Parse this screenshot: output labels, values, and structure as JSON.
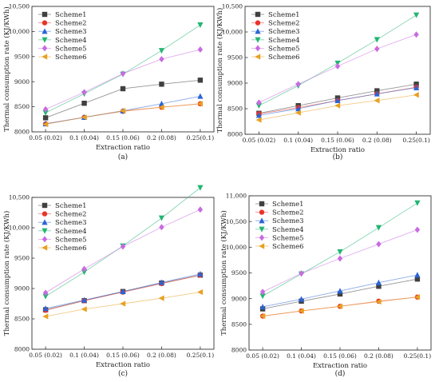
{
  "colors": {
    "Scheme1": "#404040",
    "Scheme2": "#e8352b",
    "Scheme3": "#2a64d6",
    "Scheme4": "#22b573",
    "Scheme5": "#c86be0",
    "Scheme6": "#e8a020"
  },
  "chart_data": [
    {
      "type": "line",
      "panel_label": "(a)",
      "xlabel": "Extraction ratio",
      "ylabel": "Thermal consumption rate (KJ/KWh)",
      "categories": [
        "0.05 (0.02)",
        "0.1 (0.04)",
        "0.15 (0.06)",
        "0.2 (0.08)",
        "0.25(0.1)"
      ],
      "ylim": [
        8000,
        10500
      ],
      "yticks": [
        8000,
        8500,
        9000,
        9500,
        10000,
        10500
      ],
      "ytick_labels": [
        "8000",
        "8500",
        "9000",
        "9500",
        "10,000",
        "10,500"
      ],
      "legend_position": "top-left",
      "series": [
        {
          "name": "Scheme1",
          "marker": "square",
          "values": [
            8280,
            8570,
            8860,
            8950,
            9030
          ]
        },
        {
          "name": "Scheme2",
          "marker": "circle",
          "values": [
            8160,
            8290,
            8410,
            8490,
            8560
          ]
        },
        {
          "name": "Scheme3",
          "marker": "triangle-up",
          "values": [
            8160,
            8290,
            8420,
            8560,
            8710
          ]
        },
        {
          "name": "Scheme4",
          "marker": "triangle-down",
          "values": [
            8380,
            8760,
            9150,
            9620,
            10130
          ]
        },
        {
          "name": "Scheme5",
          "marker": "diamond",
          "values": [
            8450,
            8790,
            9160,
            9450,
            9640
          ]
        },
        {
          "name": "Scheme6",
          "marker": "triangle-left",
          "values": [
            8150,
            8290,
            8420,
            8490,
            8560
          ]
        }
      ]
    },
    {
      "type": "line",
      "panel_label": "(b)",
      "xlabel": "Extraction ratio",
      "ylabel": "Thermal consumption rate (KJ/KWh)",
      "categories": [
        "0.05 (0.02)",
        "0.1 (0.04)",
        "0.15 (0.06)",
        "0.2 (0.08)",
        "0.25(0.1)"
      ],
      "ylim": [
        8000,
        10500
      ],
      "yticks": [
        8000,
        8500,
        9000,
        9500,
        10000,
        10500
      ],
      "ytick_labels": [
        "8000",
        "8500",
        "9000",
        "9500",
        "10,000",
        "10,500"
      ],
      "legend_position": "top-left",
      "series": [
        {
          "name": "Scheme1",
          "marker": "square",
          "values": [
            8410,
            8560,
            8710,
            8850,
            8980
          ]
        },
        {
          "name": "Scheme2",
          "marker": "circle",
          "values": [
            8400,
            8520,
            8660,
            8790,
            8920
          ]
        },
        {
          "name": "Scheme3",
          "marker": "triangle-up",
          "values": [
            8370,
            8500,
            8660,
            8790,
            8910
          ]
        },
        {
          "name": "Scheme4",
          "marker": "triangle-down",
          "values": [
            8560,
            8950,
            9390,
            9850,
            10330
          ]
        },
        {
          "name": "Scheme5",
          "marker": "diamond",
          "values": [
            8620,
            8980,
            9330,
            9670,
            9950
          ]
        },
        {
          "name": "Scheme6",
          "marker": "triangle-left",
          "values": [
            8280,
            8420,
            8560,
            8660,
            8770
          ]
        }
      ]
    },
    {
      "type": "line",
      "panel_label": "(c)",
      "xlabel": "Extraction ratio",
      "ylabel": "Thermal consumption rate (KJ/KWh)",
      "categories": [
        "0.05 (0.02)",
        "0.1 (0.04)",
        "0.15 (0.06)",
        "0.2 (0.08)",
        "0.25(0.1)"
      ],
      "ylim": [
        8000,
        10500
      ],
      "yticks": [
        8000,
        8500,
        9000,
        9500,
        10000,
        10500
      ],
      "ytick_labels": [
        "8000",
        "8500",
        "9000",
        "9500",
        "10,000",
        "10,500"
      ],
      "legend_position": "top-left",
      "series": [
        {
          "name": "Scheme1",
          "marker": "square",
          "values": [
            8650,
            8800,
            8950,
            9090,
            9220
          ]
        },
        {
          "name": "Scheme2",
          "marker": "circle",
          "values": [
            8640,
            8800,
            8940,
            9080,
            9220
          ]
        },
        {
          "name": "Scheme3",
          "marker": "triangle-up",
          "values": [
            8670,
            8810,
            8950,
            9100,
            9240
          ]
        },
        {
          "name": "Scheme4",
          "marker": "triangle-down",
          "values": [
            8870,
            9270,
            9700,
            10160,
            10660
          ]
        },
        {
          "name": "Scheme5",
          "marker": "diamond",
          "values": [
            8930,
            9320,
            9690,
            10010,
            10300
          ]
        },
        {
          "name": "Scheme6",
          "marker": "triangle-left",
          "values": [
            8540,
            8660,
            8750,
            8840,
            8940
          ]
        }
      ]
    },
    {
      "type": "line",
      "panel_label": "(d)",
      "xlabel": "Extraction ratio",
      "ylabel": "Thermal consumption rate (KJ/KWh)",
      "categories": [
        "0.05 (0.02)",
        "0.1 (0.04)",
        "0.15 (0.06)",
        "0.2 (0.08)",
        "0.25(0.1)"
      ],
      "ylim": [
        8000,
        11000
      ],
      "yticks": [
        8000,
        8500,
        9000,
        9500,
        10000,
        10500,
        11000
      ],
      "ytick_labels": [
        "8000",
        "8500",
        "9000",
        "9500",
        "10,000",
        "10,500",
        "11,000"
      ],
      "legend_position": "top-left",
      "series": [
        {
          "name": "Scheme1",
          "marker": "square",
          "values": [
            8800,
            8950,
            9090,
            9240,
            9380
          ]
        },
        {
          "name": "Scheme2",
          "marker": "circle",
          "values": [
            8660,
            8760,
            8850,
            8950,
            9030
          ]
        },
        {
          "name": "Scheme3",
          "marker": "triangle-up",
          "values": [
            8840,
            8990,
            9150,
            9310,
            9460
          ]
        },
        {
          "name": "Scheme4",
          "marker": "triangle-down",
          "values": [
            9050,
            9480,
            9910,
            10380,
            10860
          ]
        },
        {
          "name": "Scheme5",
          "marker": "diamond",
          "values": [
            9130,
            9490,
            9780,
            10060,
            10340
          ]
        },
        {
          "name": "Scheme6",
          "marker": "triangle-left",
          "values": [
            8660,
            8760,
            8850,
            8940,
            9030
          ]
        }
      ]
    }
  ]
}
